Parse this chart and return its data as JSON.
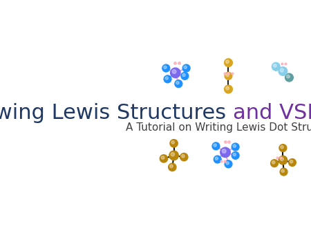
{
  "title_part1": "Drawing Lewis Structures ",
  "title_part2": "and VSEPR",
  "subtitle": "A Tutorial on Writing Lewis Dot Structure",
  "title_color1": "#1F3864",
  "title_color2": "#7030A0",
  "subtitle_color": "#404040",
  "title_fontsize": 22,
  "subtitle_fontsize": 11,
  "bg_color": "#FFFFFF"
}
